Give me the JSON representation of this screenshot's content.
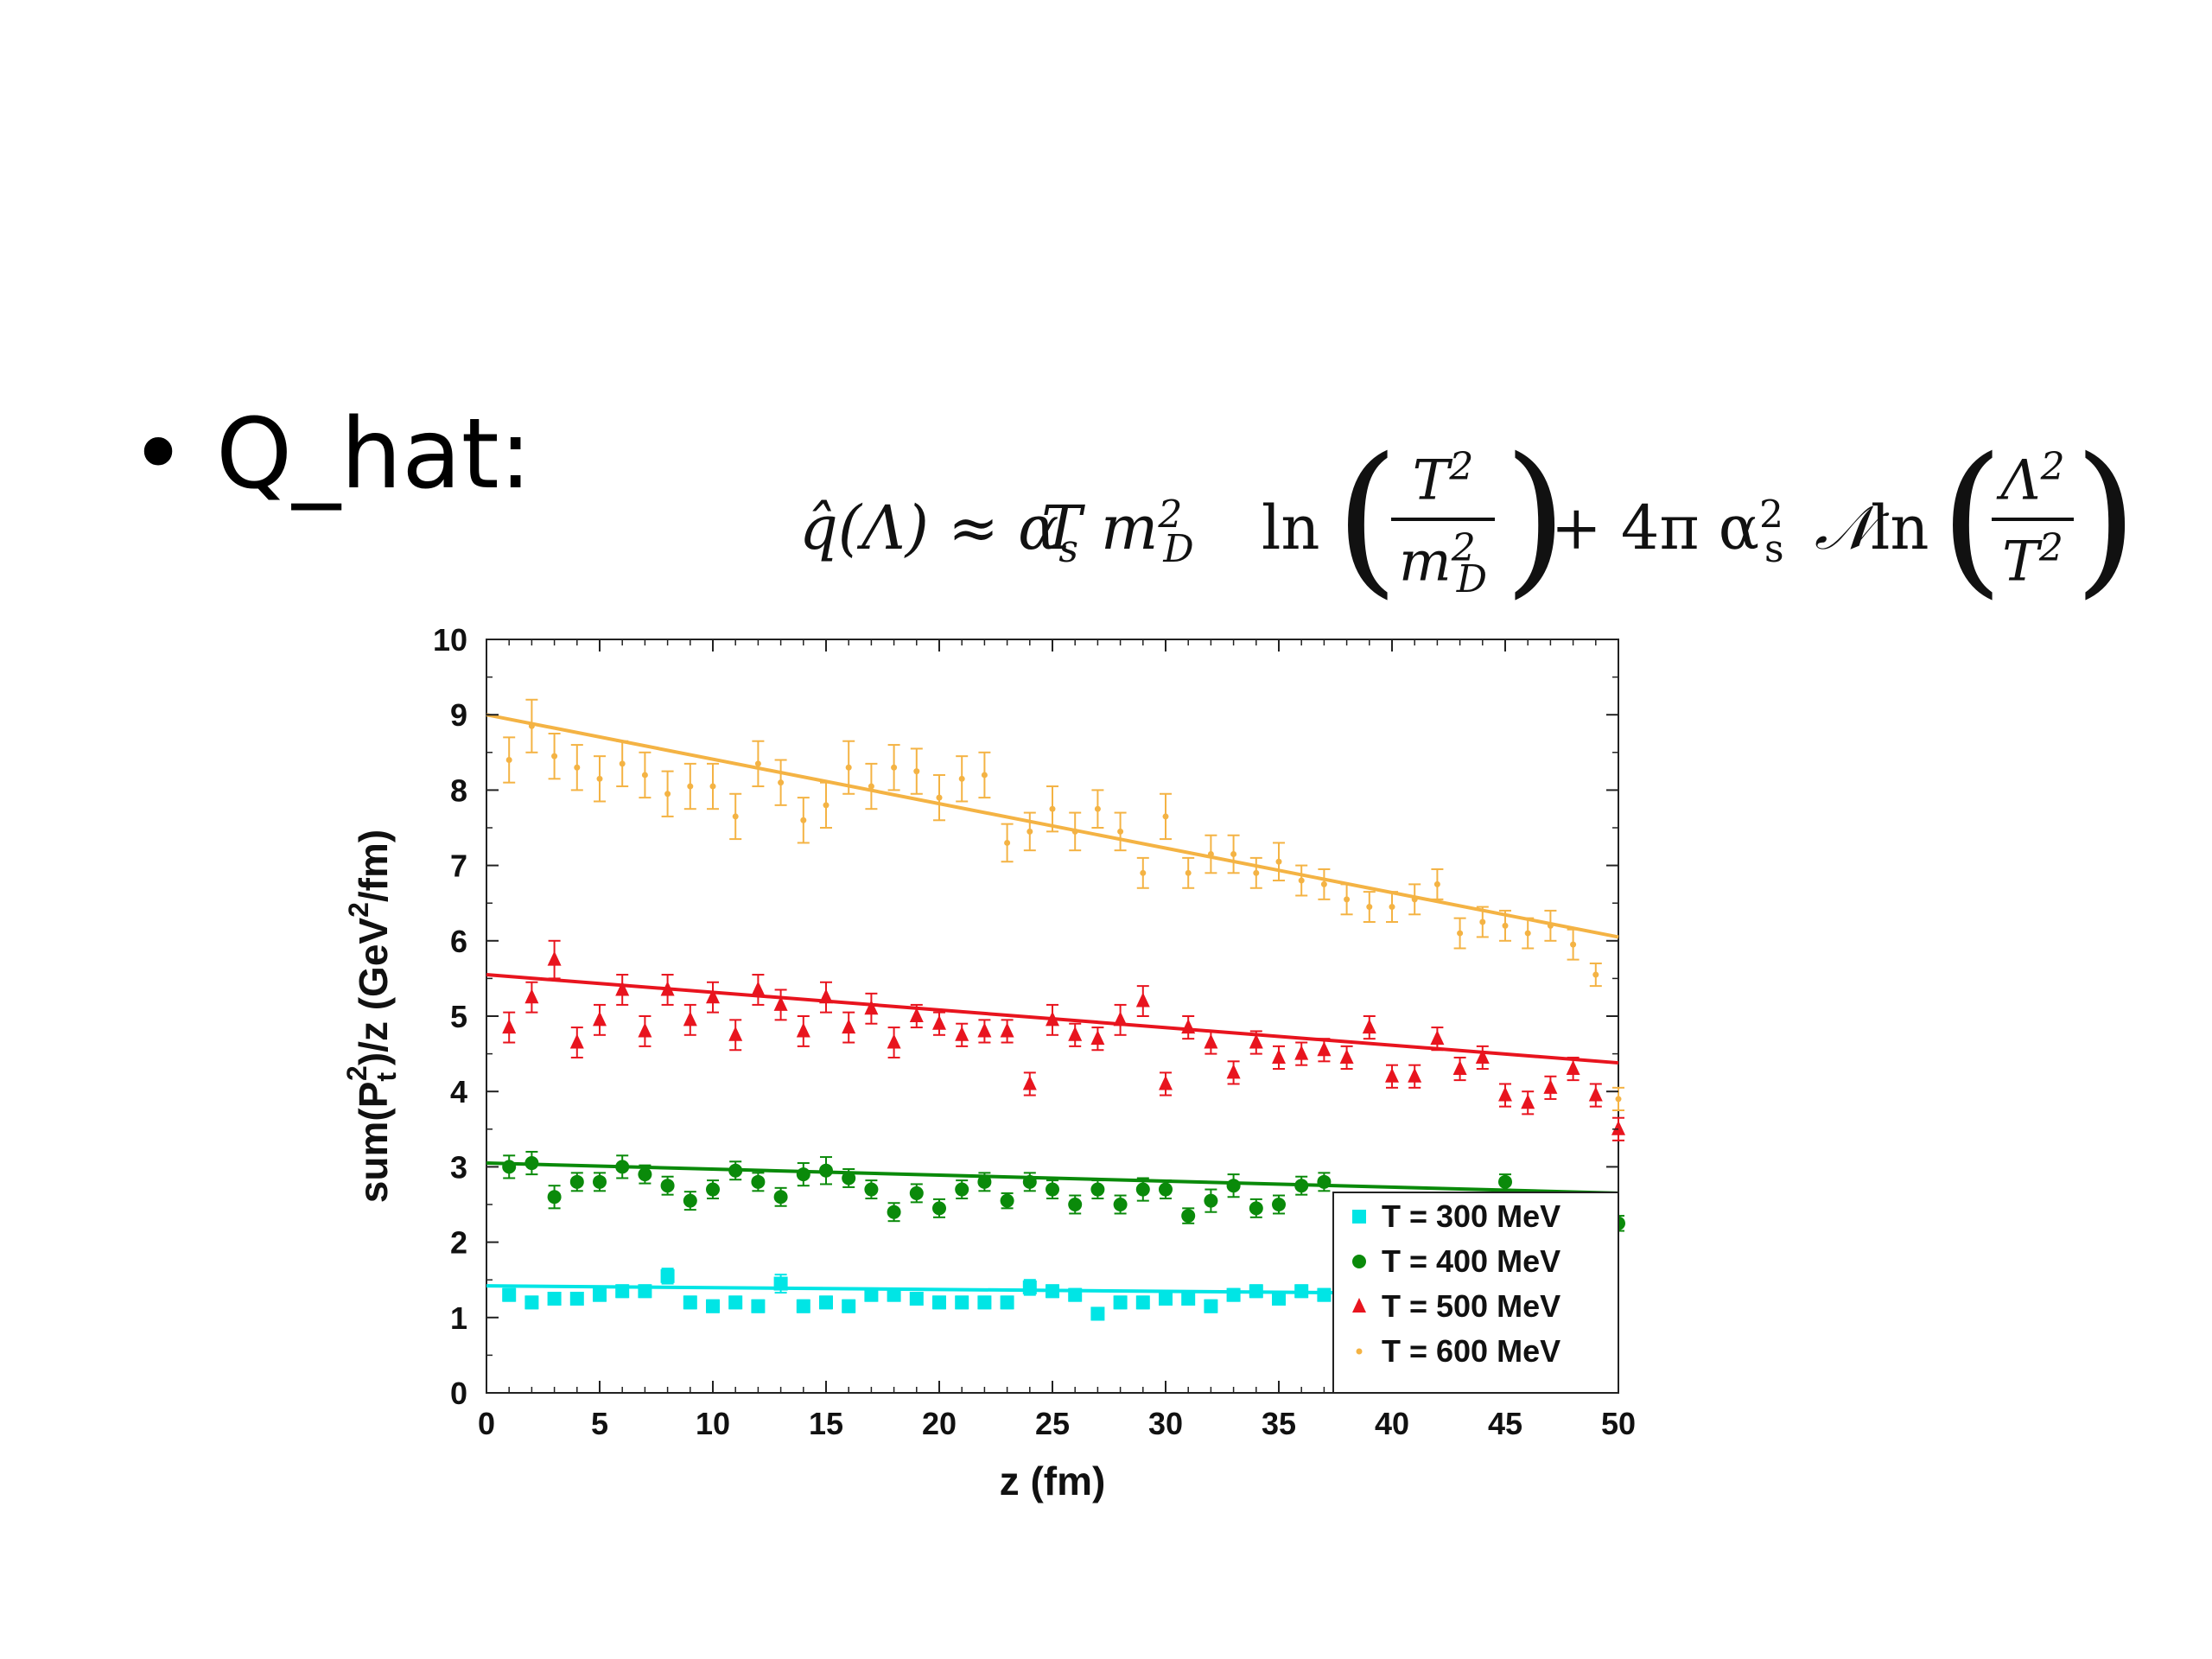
{
  "slide": {
    "bullet": "•",
    "bullet_text": "Q_hat:",
    "formula": {
      "lhs": "q̂(Λ) ≈ α",
      "lhs_sub": "s",
      "t1": "T m",
      "t1_sup": "2",
      "t1_sub": "D",
      "ln": "ln",
      "frac1_num": "T",
      "frac1_num_sup": "2",
      "frac1_den": "m",
      "frac1_den_sup": "2",
      "frac1_den_sub": "D",
      "plus": "+ 4π α",
      "plus_sup": "2",
      "plus_sub": "s",
      "N": "𝒩",
      "ln2": "ln",
      "frac2_num": "Λ",
      "frac2_num_sup": "2",
      "frac2_den": "T",
      "frac2_den_sup": "2"
    }
  },
  "chart_data": {
    "type": "scatter",
    "xlabel": "z (fm)",
    "ylabel": "sum(P_t^2)/z (GeV^2/fm)",
    "xlim": [
      0,
      50
    ],
    "ylim": [
      0,
      10
    ],
    "xticks": [
      "0",
      "5",
      "10",
      "15",
      "20",
      "25",
      "30",
      "35",
      "40",
      "45",
      "50"
    ],
    "yticks": [
      "0",
      "1",
      "2",
      "3",
      "4",
      "5",
      "6",
      "7",
      "8",
      "9",
      "10"
    ],
    "legend_position": "bottom-right",
    "legend_box": true,
    "grid": false,
    "series": [
      {
        "name": "T = 300 MeV",
        "color": "#00e5e5",
        "marker": "square",
        "x": [
          1,
          2,
          3,
          4,
          5,
          6,
          7,
          8,
          9,
          10,
          11,
          12,
          13,
          14,
          15,
          16,
          17,
          18,
          19,
          20,
          21,
          22,
          23,
          24,
          25,
          26,
          27,
          28,
          29,
          30,
          31,
          32,
          33,
          34,
          35,
          36,
          37
        ],
        "y": [
          1.3,
          1.2,
          1.25,
          1.25,
          1.3,
          1.35,
          1.35,
          1.55,
          1.2,
          1.15,
          1.2,
          1.15,
          1.45,
          1.15,
          1.2,
          1.15,
          1.3,
          1.3,
          1.25,
          1.2,
          1.2,
          1.2,
          1.2,
          1.4,
          1.35,
          1.3,
          1.05,
          1.2,
          1.2,
          1.25,
          1.25,
          1.15,
          1.3,
          1.35,
          1.25,
          1.35,
          1.3
        ],
        "err": [
          0.08,
          0.08,
          0.08,
          0.08,
          0.08,
          0.08,
          0.08,
          0.1,
          0.08,
          0.08,
          0.08,
          0.08,
          0.12,
          0.08,
          0.08,
          0.08,
          0.08,
          0.08,
          0.08,
          0.08,
          0.08,
          0.08,
          0.08,
          0.1,
          0.08,
          0.08,
          0.08,
          0.08,
          0.08,
          0.08,
          0.08,
          0.08,
          0.08,
          0.08,
          0.08,
          0.08,
          0.08
        ],
        "fit": [
          1.42,
          1.3
        ]
      },
      {
        "name": "T = 400 MeV",
        "color": "#0a8a0a",
        "marker": "circle",
        "x": [
          1,
          2,
          3,
          4,
          5,
          6,
          7,
          8,
          9,
          10,
          11,
          12,
          13,
          14,
          15,
          16,
          17,
          18,
          19,
          20,
          21,
          22,
          23,
          24,
          25,
          26,
          27,
          28,
          29,
          30,
          31,
          32,
          33,
          34,
          35,
          36,
          37,
          45,
          50
        ],
        "y": [
          3.0,
          3.05,
          2.6,
          2.8,
          2.8,
          3.0,
          2.9,
          2.75,
          2.55,
          2.7,
          2.95,
          2.8,
          2.6,
          2.9,
          2.95,
          2.85,
          2.7,
          2.4,
          2.65,
          2.45,
          2.7,
          2.8,
          2.55,
          2.8,
          2.7,
          2.5,
          2.7,
          2.5,
          2.7,
          2.7,
          2.35,
          2.55,
          2.75,
          2.45,
          2.5,
          2.75,
          2.8,
          2.8,
          2.25
        ],
        "err": [
          0.15,
          0.15,
          0.15,
          0.12,
          0.12,
          0.15,
          0.12,
          0.12,
          0.12,
          0.12,
          0.12,
          0.12,
          0.12,
          0.15,
          0.18,
          0.12,
          0.12,
          0.12,
          0.12,
          0.12,
          0.12,
          0.12,
          0.1,
          0.12,
          0.12,
          0.12,
          0.12,
          0.12,
          0.15,
          0.12,
          0.1,
          0.15,
          0.15,
          0.12,
          0.12,
          0.12,
          0.12,
          0.1,
          0.1
        ],
        "fit": [
          3.05,
          2.65
        ]
      },
      {
        "name": "T = 500 MeV",
        "color": "#e8141e",
        "marker": "triangle",
        "x": [
          1,
          2,
          3,
          4,
          5,
          6,
          7,
          8,
          9,
          10,
          11,
          12,
          13,
          14,
          15,
          16,
          17,
          18,
          19,
          20,
          21,
          22,
          23,
          24,
          25,
          26,
          27,
          28,
          29,
          30,
          31,
          32,
          33,
          34,
          35,
          36,
          37,
          38,
          39,
          40,
          41,
          42,
          43,
          44,
          45,
          46,
          47,
          48,
          49,
          50
        ],
        "y": [
          4.85,
          5.25,
          5.75,
          4.65,
          4.95,
          5.35,
          4.8,
          5.35,
          4.95,
          5.25,
          4.75,
          5.35,
          5.15,
          4.8,
          5.25,
          4.85,
          5.1,
          4.65,
          5.0,
          4.9,
          4.75,
          4.8,
          4.8,
          4.1,
          4.95,
          4.75,
          4.7,
          4.95,
          5.2,
          4.1,
          4.85,
          4.65,
          4.25,
          4.65,
          4.45,
          4.5,
          4.55,
          4.45,
          4.85,
          4.2,
          4.2,
          4.7,
          4.3,
          4.45,
          3.95,
          3.85,
          4.05,
          4.3,
          3.95,
          3.5
        ],
        "err": [
          0.2,
          0.2,
          0.25,
          0.2,
          0.2,
          0.2,
          0.2,
          0.2,
          0.2,
          0.2,
          0.2,
          0.2,
          0.2,
          0.2,
          0.2,
          0.2,
          0.2,
          0.2,
          0.15,
          0.15,
          0.15,
          0.15,
          0.15,
          0.15,
          0.2,
          0.15,
          0.15,
          0.2,
          0.2,
          0.15,
          0.15,
          0.15,
          0.15,
          0.15,
          0.15,
          0.15,
          0.15,
          0.15,
          0.15,
          0.15,
          0.15,
          0.15,
          0.15,
          0.15,
          0.15,
          0.15,
          0.15,
          0.15,
          0.15,
          0.15
        ],
        "fit": [
          5.55,
          4.38
        ]
      },
      {
        "name": "T = 600 MeV",
        "color": "#f4b344",
        "marker": "dot",
        "x": [
          1,
          2,
          3,
          4,
          5,
          6,
          7,
          8,
          9,
          10,
          11,
          12,
          13,
          14,
          15,
          16,
          17,
          18,
          19,
          20,
          21,
          22,
          23,
          24,
          25,
          26,
          27,
          28,
          29,
          30,
          31,
          32,
          33,
          34,
          35,
          36,
          37,
          38,
          39,
          40,
          41,
          42,
          43,
          44,
          45,
          46,
          47,
          48,
          49,
          50
        ],
        "y": [
          8.4,
          8.85,
          8.45,
          8.3,
          8.15,
          8.35,
          8.2,
          7.95,
          8.05,
          8.05,
          7.65,
          8.35,
          8.1,
          7.6,
          7.8,
          8.3,
          8.05,
          8.3,
          8.25,
          7.9,
          8.15,
          8.2,
          7.3,
          7.45,
          7.75,
          7.45,
          7.75,
          7.45,
          6.9,
          7.65,
          6.9,
          7.15,
          7.15,
          6.9,
          7.05,
          6.8,
          6.75,
          6.55,
          6.45,
          6.45,
          6.55,
          6.75,
          6.1,
          6.25,
          6.2,
          6.1,
          6.2,
          5.95,
          5.55,
          3.9
        ],
        "err": [
          0.3,
          0.35,
          0.3,
          0.3,
          0.3,
          0.3,
          0.3,
          0.3,
          0.3,
          0.3,
          0.3,
          0.3,
          0.3,
          0.3,
          0.3,
          0.35,
          0.3,
          0.3,
          0.3,
          0.3,
          0.3,
          0.3,
          0.25,
          0.25,
          0.3,
          0.25,
          0.25,
          0.25,
          0.2,
          0.3,
          0.2,
          0.25,
          0.25,
          0.2,
          0.25,
          0.2,
          0.2,
          0.2,
          0.2,
          0.2,
          0.2,
          0.2,
          0.2,
          0.2,
          0.2,
          0.2,
          0.2,
          0.2,
          0.15,
          0.15
        ],
        "fit": [
          9.0,
          6.05
        ]
      }
    ]
  }
}
